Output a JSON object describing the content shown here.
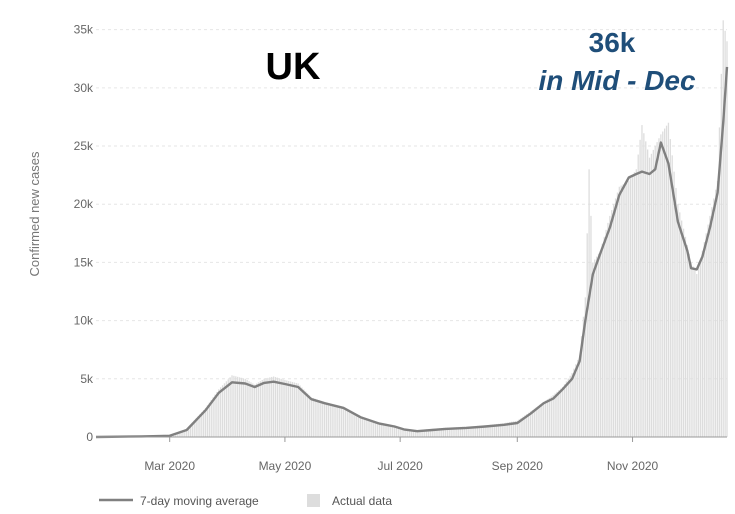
{
  "chart_data": {
    "type": "bar",
    "title": "UK",
    "ylabel": "Confirmed new cases",
    "xlabel": "",
    "ylim": [
      0,
      36000
    ],
    "y_ticks": [
      "0",
      "5k",
      "10k",
      "15k",
      "20k",
      "25k",
      "30k",
      "35k"
    ],
    "y_tick_values": [
      0,
      5000,
      10000,
      15000,
      20000,
      25000,
      30000,
      35000
    ],
    "x_ticks": [
      "Mar 2020",
      "May 2020",
      "Jul 2020",
      "Sep 2020",
      "Nov 2020"
    ],
    "x_tick_dates": [
      "2020-03-01",
      "2020-05-01",
      "2020-07-01",
      "2020-09-01",
      "2020-11-01"
    ],
    "x_range": [
      "2020-01-22",
      "2020-12-21"
    ],
    "grid": true,
    "legend_position": "bottom-left",
    "annotation": {
      "value": "36k",
      "text": "in Mid - Dec",
      "color": "#1f4e79"
    },
    "series": [
      {
        "name": "7-day moving average",
        "style": "line",
        "color": "#808080",
        "x": [
          "2020-01-22",
          "2020-02-15",
          "2020-03-01",
          "2020-03-10",
          "2020-03-20",
          "2020-03-27",
          "2020-04-03",
          "2020-04-10",
          "2020-04-15",
          "2020-04-20",
          "2020-04-25",
          "2020-05-01",
          "2020-05-08",
          "2020-05-15",
          "2020-05-22",
          "2020-06-01",
          "2020-06-10",
          "2020-06-20",
          "2020-06-28",
          "2020-07-03",
          "2020-07-10",
          "2020-07-18",
          "2020-07-25",
          "2020-08-05",
          "2020-08-15",
          "2020-08-25",
          "2020-09-01",
          "2020-09-08",
          "2020-09-15",
          "2020-09-20",
          "2020-09-25",
          "2020-09-30",
          "2020-10-04",
          "2020-10-07",
          "2020-10-09",
          "2020-10-11",
          "2020-10-15",
          "2020-10-20",
          "2020-10-25",
          "2020-10-30",
          "2020-11-03",
          "2020-11-06",
          "2020-11-10",
          "2020-11-13",
          "2020-11-16",
          "2020-11-20",
          "2020-11-25",
          "2020-11-30",
          "2020-12-02",
          "2020-12-05",
          "2020-12-08",
          "2020-12-12",
          "2020-12-16",
          "2020-12-19",
          "2020-12-21"
        ],
        "values": [
          0,
          50,
          100,
          600,
          2300,
          3800,
          4700,
          4600,
          4300,
          4650,
          4750,
          4550,
          4300,
          3250,
          2900,
          2500,
          1700,
          1150,
          900,
          650,
          500,
          600,
          700,
          780,
          900,
          1050,
          1200,
          2000,
          2900,
          3300,
          4100,
          5000,
          6500,
          10000,
          12000,
          14000,
          15800,
          18000,
          20800,
          22300,
          22600,
          22800,
          22600,
          23000,
          25300,
          23500,
          18500,
          16000,
          14500,
          14400,
          15500,
          18000,
          21000,
          27000,
          31800
        ]
      },
      {
        "name": "Actual data",
        "style": "bars",
        "color": "#dddddd",
        "x": [
          "2020-02-15",
          "2020-03-01",
          "2020-03-10",
          "2020-03-20",
          "2020-03-27",
          "2020-04-03",
          "2020-04-10",
          "2020-04-15",
          "2020-04-20",
          "2020-04-25",
          "2020-05-01",
          "2020-05-08",
          "2020-05-15",
          "2020-05-22",
          "2020-06-01",
          "2020-06-10",
          "2020-06-20",
          "2020-06-28",
          "2020-07-03",
          "2020-07-10",
          "2020-07-18",
          "2020-07-25",
          "2020-08-05",
          "2020-08-15",
          "2020-08-25",
          "2020-09-01",
          "2020-09-08",
          "2020-09-15",
          "2020-09-20",
          "2020-09-25",
          "2020-09-30",
          "2020-10-04",
          "2020-10-07",
          "2020-10-09",
          "2020-10-11",
          "2020-10-15",
          "2020-10-20",
          "2020-10-25",
          "2020-10-30",
          "2020-11-03",
          "2020-11-06",
          "2020-11-10",
          "2020-11-13",
          "2020-11-16",
          "2020-11-20",
          "2020-11-25",
          "2020-11-30",
          "2020-12-02",
          "2020-12-05",
          "2020-12-08",
          "2020-12-12",
          "2020-12-16",
          "2020-12-19",
          "2020-12-21"
        ],
        "values": [
          100,
          200,
          700,
          2500,
          4100,
          5300,
          5000,
          4500,
          5000,
          5200,
          4900,
          4600,
          3400,
          3000,
          2600,
          1800,
          1200,
          1000,
          700,
          600,
          700,
          800,
          900,
          1000,
          1200,
          1400,
          2200,
          3000,
          3600,
          4300,
          5500,
          7000,
          12000,
          23000,
          15000,
          16000,
          19000,
          21500,
          22000,
          23000,
          26800,
          24000,
          25000,
          26000,
          27000,
          20000,
          16500,
          15000,
          14000,
          16000,
          19000,
          22000,
          35800,
          34000
        ]
      }
    ]
  }
}
